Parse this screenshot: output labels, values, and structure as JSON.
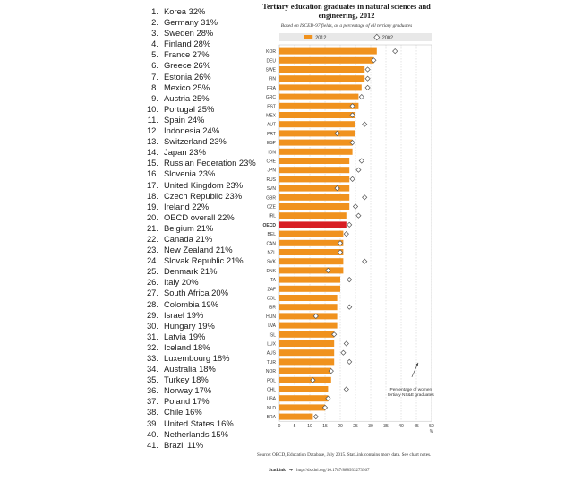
{
  "ranking": [
    {
      "rank": "1.",
      "label": "Korea 32%"
    },
    {
      "rank": "2.",
      "label": "Germany 31%"
    },
    {
      "rank": "3.",
      "label": "Sweden 28%"
    },
    {
      "rank": "4.",
      "label": "Finland 28%"
    },
    {
      "rank": "5.",
      "label": "France 27%"
    },
    {
      "rank": "6.",
      "label": "Greece 26%"
    },
    {
      "rank": "7.",
      "label": "Estonia 26%"
    },
    {
      "rank": "8.",
      "label": "Mexico 25%"
    },
    {
      "rank": "9.",
      "label": "Austria 25%"
    },
    {
      "rank": "10.",
      "label": "Portugal 25%"
    },
    {
      "rank": "11.",
      "label": "Spain 24%"
    },
    {
      "rank": "12.",
      "label": "Indonesia 24%"
    },
    {
      "rank": "13.",
      "label": "Switzerland 23%"
    },
    {
      "rank": "14.",
      "label": "Japan 23%"
    },
    {
      "rank": "15.",
      "label": "Russian Federation 23%"
    },
    {
      "rank": "16.",
      "label": "Slovenia 23%"
    },
    {
      "rank": "17.",
      "label": "United Kingdom 23%"
    },
    {
      "rank": "18.",
      "label": "Czech Republic 23%"
    },
    {
      "rank": "19.",
      "label": "Ireland 22%"
    },
    {
      "rank": "20.",
      "label": "OECD overall 22%"
    },
    {
      "rank": "21.",
      "label": "Belgium 21%"
    },
    {
      "rank": "22.",
      "label": "Canada 21%"
    },
    {
      "rank": "23.",
      "label": "New Zealand 21%"
    },
    {
      "rank": "24.",
      "label": "Slovak Republic 21%"
    },
    {
      "rank": "25.",
      "label": "Denmark 21%"
    },
    {
      "rank": "26.",
      "label": "Italy 20%"
    },
    {
      "rank": "27.",
      "label": "South Africa 20%"
    },
    {
      "rank": "28.",
      "label": "Colombia 19%"
    },
    {
      "rank": "29.",
      "label": "Israel 19%"
    },
    {
      "rank": "30.",
      "label": "Hungary 19%"
    },
    {
      "rank": "31.",
      "label": "Latvia 19%"
    },
    {
      "rank": "32.",
      "label": "Iceland 18%"
    },
    {
      "rank": "33.",
      "label": "Luxembourg 18%"
    },
    {
      "rank": "34.",
      "label": "Australia 18%"
    },
    {
      "rank": "35.",
      "label": "Turkey 18%"
    },
    {
      "rank": "36.",
      "label": "Norway 17%"
    },
    {
      "rank": "37.",
      "label": "Poland 17%"
    },
    {
      "rank": "38.",
      "label": "Chile 16%"
    },
    {
      "rank": "39.",
      "label": "United States 16%"
    },
    {
      "rank": "40.",
      "label": "Netherlands 15%"
    },
    {
      "rank": "41.",
      "label": "Brazil 11%"
    }
  ],
  "chart_data": {
    "type": "bar",
    "orientation": "horizontal",
    "title": "Tertiary education graduates in natural sciences and engineering, 2012",
    "subtitle": "Based on ISCED-97 fields, as a percentage of all tertiary graduates",
    "categories": [
      "KOR",
      "DEU",
      "SWE",
      "FIN",
      "FRA",
      "GRC",
      "EST",
      "MEX",
      "AUT",
      "PRT",
      "ESP",
      "IDN",
      "CHE",
      "JPN",
      "RUS",
      "SVN",
      "GBR",
      "CZE",
      "IRL",
      "OECD",
      "BEL",
      "CAN",
      "NZL",
      "SVK",
      "DNK",
      "ITA",
      "ZAF",
      "COL",
      "ISR",
      "HUN",
      "LVA",
      "ISL",
      "LUX",
      "AUS",
      "TUR",
      "NOR",
      "POL",
      "CHL",
      "USA",
      "NLD",
      "BRA"
    ],
    "highlight_category": "OECD",
    "series": [
      {
        "name": "2012",
        "mark": "bar",
        "values": [
          32,
          31,
          28,
          28,
          27,
          26,
          26,
          25,
          25,
          25,
          24,
          24,
          23,
          23,
          23,
          23,
          23,
          23,
          22,
          22,
          21,
          21,
          21,
          21,
          21,
          20,
          20,
          19,
          19,
          19,
          19,
          18,
          18,
          18,
          18,
          17,
          17,
          16,
          16,
          15,
          11
        ]
      },
      {
        "name": "2002",
        "mark": "diamond",
        "values": [
          38,
          31,
          29,
          29,
          29,
          27,
          24,
          24,
          28,
          19,
          24,
          null,
          27,
          26,
          24,
          19,
          28,
          25,
          26,
          23,
          22,
          20,
          20,
          28,
          16,
          23,
          null,
          null,
          23,
          12,
          null,
          18,
          22,
          21,
          23,
          17,
          11,
          22,
          16,
          15,
          12
        ]
      }
    ],
    "xlim": [
      0,
      50
    ],
    "xticks": [
      0,
      5,
      10,
      15,
      20,
      25,
      30,
      35,
      40,
      45,
      50
    ],
    "xtick_labels": [
      "0",
      "5",
      "10",
      "15",
      "20",
      "25",
      "30",
      "35",
      "40",
      "45",
      "50"
    ],
    "x_unit_label": "%",
    "grid": true,
    "legend_placement": "top",
    "annotation": "Percentage of women tertiary NS&E graduates",
    "colors": {
      "bar": "#f0921e",
      "highlight": "#d81e24",
      "band": "#e8e8e8",
      "marker": "#555555"
    }
  },
  "source_note": "Source: OECD, Education Database, July 2015. StatLink contains more data. See chart notes.",
  "statlink_brand": "StatLink",
  "statlink_url": "http://dx.doi.org/10.1787/888933273567"
}
